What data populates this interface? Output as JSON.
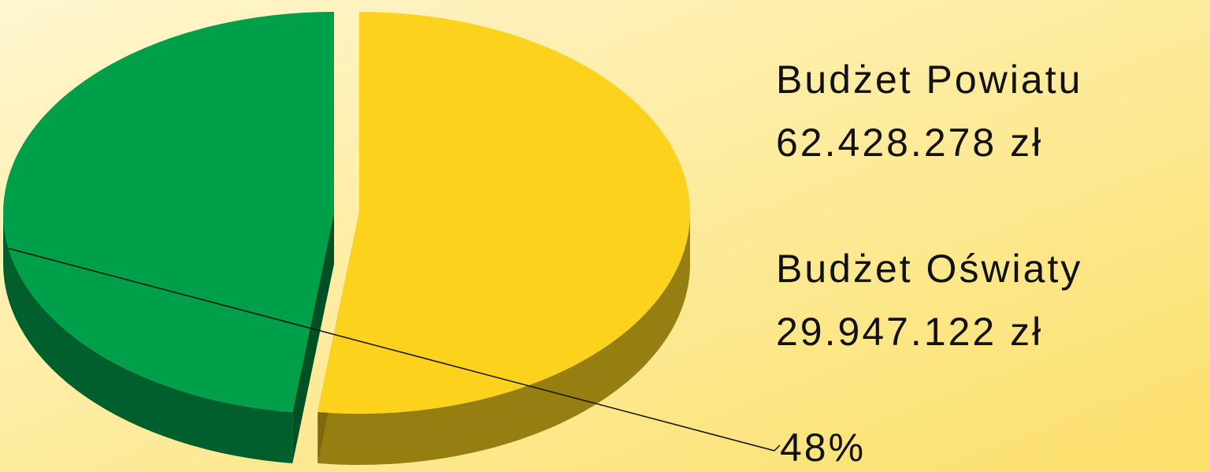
{
  "chart_data": {
    "type": "pie",
    "annotations": [
      "Budżet Powiatu",
      "62.428.278 zł",
      "Budżet Oświaty",
      "29.947.122 zł"
    ],
    "series": [
      {
        "name": null,
        "values": [
          52,
          48
        ],
        "colors": [
          "#fcd21c",
          "#009f4a"
        ],
        "value_labels": [
          null,
          "48%"
        ]
      }
    ]
  }
}
